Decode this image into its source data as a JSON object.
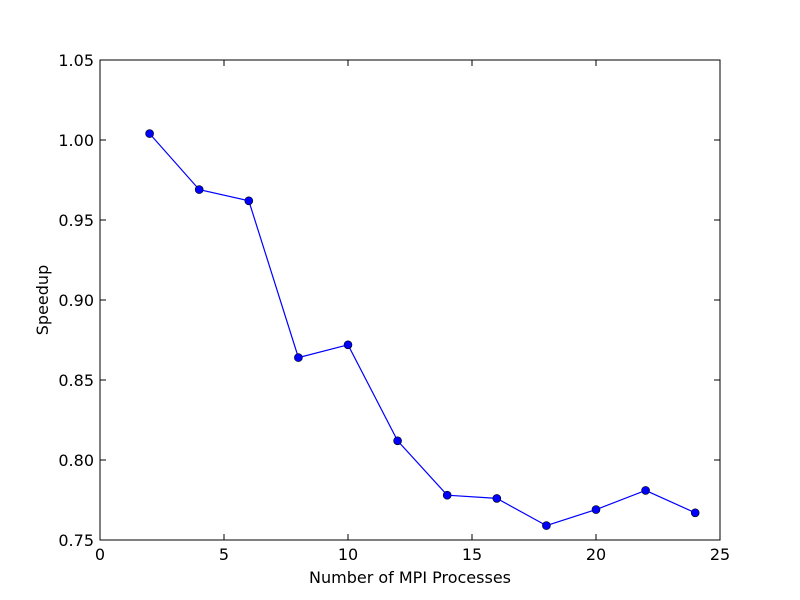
{
  "chart_data": {
    "type": "line",
    "title": "",
    "xlabel": "Number of MPI Processes",
    "ylabel": "Speedup",
    "xlim": [
      0,
      25
    ],
    "ylim": [
      0.75,
      1.05
    ],
    "x_ticks": [
      0,
      5,
      10,
      15,
      20,
      25
    ],
    "x_tick_labels": [
      "0",
      "5",
      "10",
      "15",
      "20",
      "25"
    ],
    "y_ticks": [
      0.75,
      0.8,
      0.85,
      0.9,
      0.95,
      1.0,
      1.05
    ],
    "y_tick_labels": [
      "0.75",
      "0.80",
      "0.85",
      "0.90",
      "0.95",
      "1.00",
      "1.05"
    ],
    "grid": false,
    "series": [
      {
        "color": "#0000ff",
        "marker": "circle",
        "x": [
          2,
          4,
          6,
          8,
          10,
          12,
          14,
          16,
          18,
          20,
          22,
          24
        ],
        "y": [
          1.004,
          0.969,
          0.962,
          0.864,
          0.872,
          0.812,
          0.778,
          0.776,
          0.759,
          0.769,
          0.781,
          0.767
        ]
      }
    ]
  }
}
